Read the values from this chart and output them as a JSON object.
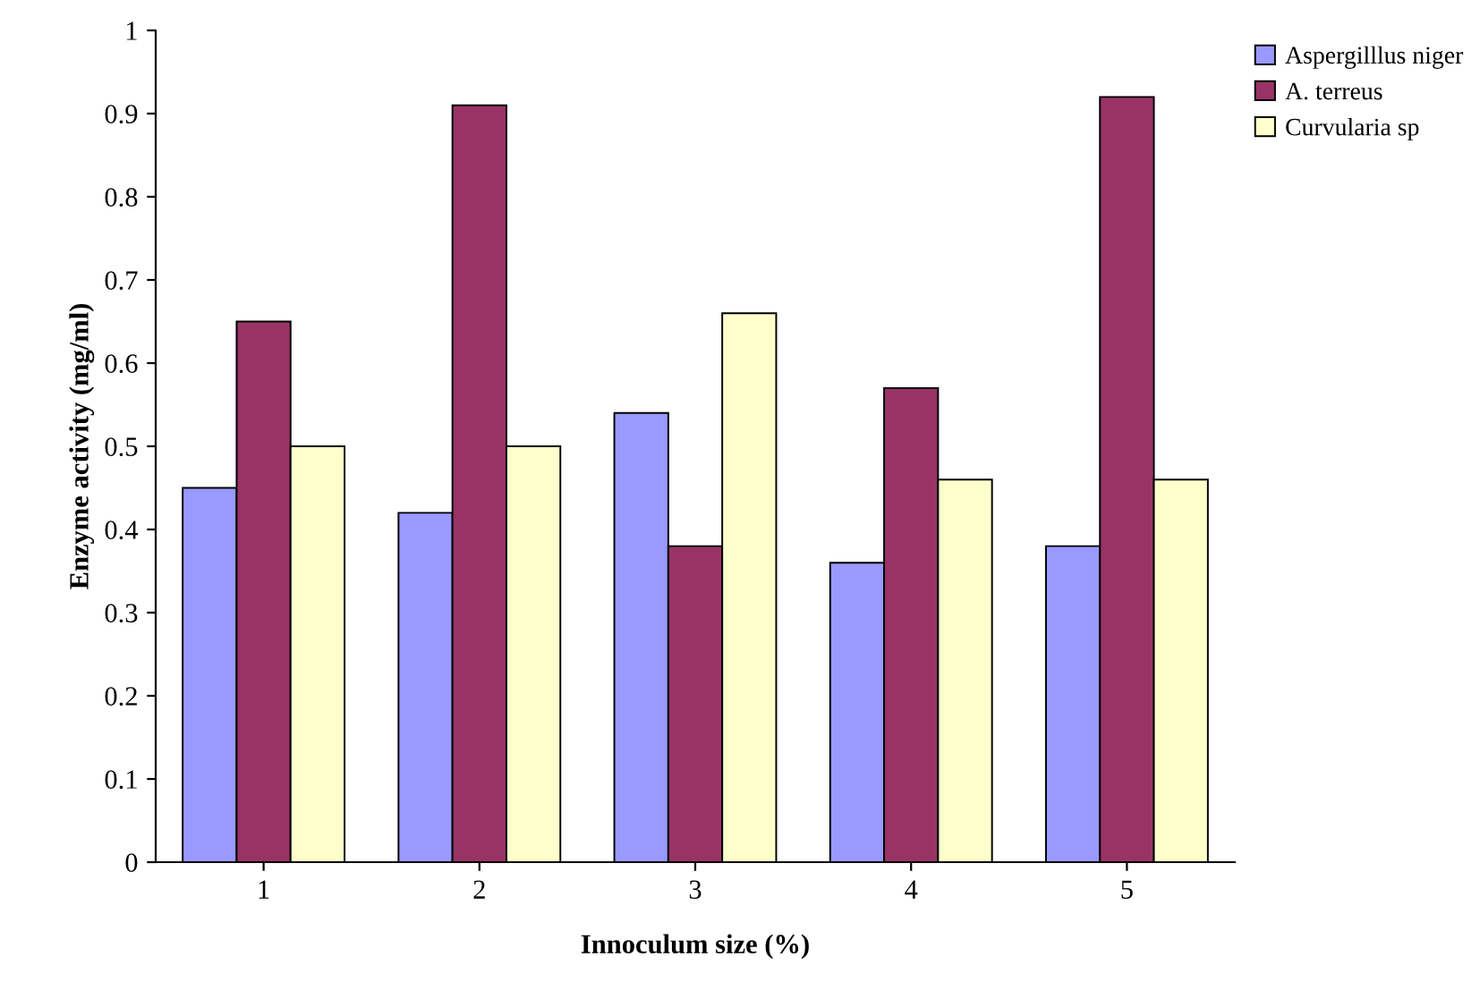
{
  "chart_data": {
    "type": "bar",
    "xlabel": "Innoculum size (%)",
    "ylabel": "Enzyme activity (mg/ml)",
    "categories": [
      "1",
      "2",
      "3",
      "4",
      "5"
    ],
    "series": [
      {
        "name": "Aspergilllus niger",
        "color": "#9999ff",
        "values": [
          0.45,
          0.42,
          0.54,
          0.36,
          0.38
        ]
      },
      {
        "name": "A. terreus",
        "color": "#993366",
        "values": [
          0.65,
          0.91,
          0.38,
          0.57,
          0.92
        ]
      },
      {
        "name": "Curvularia sp",
        "color": "#ffffcc",
        "values": [
          0.5,
          0.5,
          0.66,
          0.46,
          0.46
        ]
      }
    ],
    "ylim": [
      0,
      1
    ],
    "yticks": [
      0,
      0.1,
      0.2,
      0.3,
      0.4,
      0.5,
      0.6,
      0.7,
      0.8,
      0.9,
      1
    ],
    "grid": false,
    "legend": "top right"
  }
}
